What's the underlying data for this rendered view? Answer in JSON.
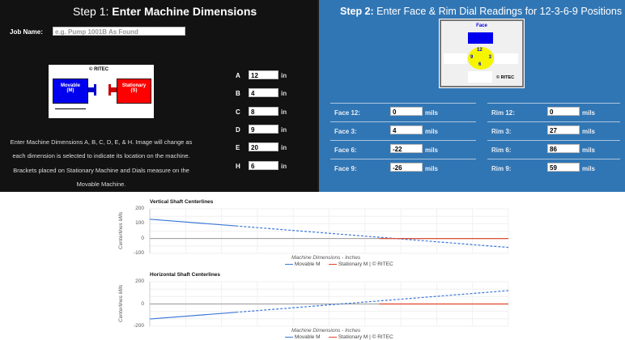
{
  "step1": {
    "step": "Step 1:",
    "title": "Enter Machine Dimensions",
    "job_label": "Job Name:",
    "job_placeholder": "e.g. Pump 1001B As Found",
    "diagram": {
      "copyright": "© RITEC",
      "movable": "Movable",
      "movable_sub": "(M)",
      "stationary": "Stationary",
      "stationary_sub": "(S)"
    },
    "dims": [
      {
        "label": "A",
        "value": "12",
        "unit": "in"
      },
      {
        "label": "B",
        "value": "4",
        "unit": "in"
      },
      {
        "label": "C",
        "value": "8",
        "unit": "in"
      },
      {
        "label": "D",
        "value": "9",
        "unit": "in"
      },
      {
        "label": "E",
        "value": "20",
        "unit": "in"
      },
      {
        "label": "H",
        "value": "6",
        "unit": "in"
      }
    ],
    "desc": [
      "Enter Machine Dimensions A, B, C, D, E, & H. Image will change as",
      "each dimension is selected to indicate its location on the machine.",
      "Brackets placed on Stationary Machine and Dials measure on the",
      "Movable Machine."
    ]
  },
  "step2": {
    "step": "Step 2:",
    "title": "Enter Face & Rim Dial Readings for 12-3-6-9 Positions",
    "dial": {
      "title": "Face",
      "p12": "12",
      "p3": "3",
      "p6": "6",
      "p9": "9",
      "copyright": "© RITEC"
    },
    "face": [
      {
        "label": "Face 12:",
        "value": "0",
        "unit": "mils"
      },
      {
        "label": "Face 3:",
        "value": "4",
        "unit": "mils"
      },
      {
        "label": "Face 6:",
        "value": "-22",
        "unit": "mils"
      },
      {
        "label": "Face 9:",
        "value": "-26",
        "unit": "mils"
      }
    ],
    "rim": [
      {
        "label": "Rim 12:",
        "value": "0",
        "unit": "mils"
      },
      {
        "label": "Rim 3:",
        "value": "27",
        "unit": "mils"
      },
      {
        "label": "Rim 6:",
        "value": "86",
        "unit": "mils"
      },
      {
        "label": "Rim 9:",
        "value": "59",
        "unit": "mils"
      }
    ]
  },
  "colors": {
    "movable": "#3c78d8",
    "stationary": "#e0452a",
    "panel_blue": "#3176b4"
  },
  "chart_data": [
    {
      "type": "line",
      "title": "Vertical Shaft Centerlines",
      "xlabel": "Machine Dimensions - Inches",
      "ylabel": "Centerlines Mils",
      "ylim": [
        -100,
        200
      ],
      "yticks": [
        "200",
        "100",
        "0",
        "-100"
      ],
      "grid": true,
      "legend": "bottom",
      "series": [
        {
          "name": "Movable M",
          "points": [
            [
              0,
              130
            ],
            [
              2.4,
              85
            ],
            [
              10,
              -60
            ]
          ],
          "solid_until": 2.4
        },
        {
          "name": "Stationary M | © RITEC",
          "points": [
            [
              6.4,
              0
            ],
            [
              10,
              0
            ]
          ]
        }
      ]
    },
    {
      "type": "line",
      "title": "Horizontal Shaft Centerlines",
      "xlabel": "Machine Dimensions - Inches",
      "ylabel": "Centerlines Mils",
      "ylim": [
        -200,
        200
      ],
      "yticks": [
        "200",
        "0",
        "-200"
      ],
      "grid": true,
      "legend": "bottom",
      "series": [
        {
          "name": "Movable M",
          "points": [
            [
              0,
              -135
            ],
            [
              2.4,
              -75
            ],
            [
              10,
              120
            ]
          ],
          "solid_until": 2.4
        },
        {
          "name": "Stationary M | © RITEC",
          "points": [
            [
              6.4,
              0
            ],
            [
              10,
              0
            ]
          ]
        }
      ]
    }
  ]
}
